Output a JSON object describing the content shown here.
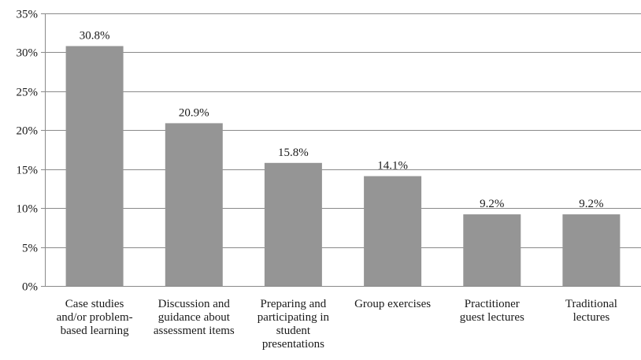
{
  "chart_data": {
    "type": "bar",
    "title": "",
    "xlabel": "",
    "ylabel": "",
    "categories": [
      [
        "Case studies",
        "and/or problem-",
        "based learning"
      ],
      [
        "Discussion and",
        "guidance about",
        "assessment items"
      ],
      [
        "Preparing and",
        "participating in",
        "student",
        "presentations"
      ],
      [
        "Group exercises"
      ],
      [
        "Practitioner",
        "guest lectures"
      ],
      [
        "Traditional",
        "lectures"
      ]
    ],
    "values": [
      30.8,
      20.9,
      15.8,
      14.1,
      9.2,
      9.2
    ],
    "data_labels": [
      "30.8%",
      "20.9%",
      "15.8%",
      "14.1%",
      "9.2%",
      "9.2%"
    ],
    "ylim": [
      0,
      35
    ],
    "yticks": [
      0,
      5,
      10,
      15,
      20,
      25,
      30,
      35
    ],
    "ytick_labels": [
      "0%",
      "5%",
      "10%",
      "15%",
      "20%",
      "25%",
      "30%",
      "35%"
    ],
    "grid": true,
    "legend": "none",
    "bar_color": "#959595"
  }
}
